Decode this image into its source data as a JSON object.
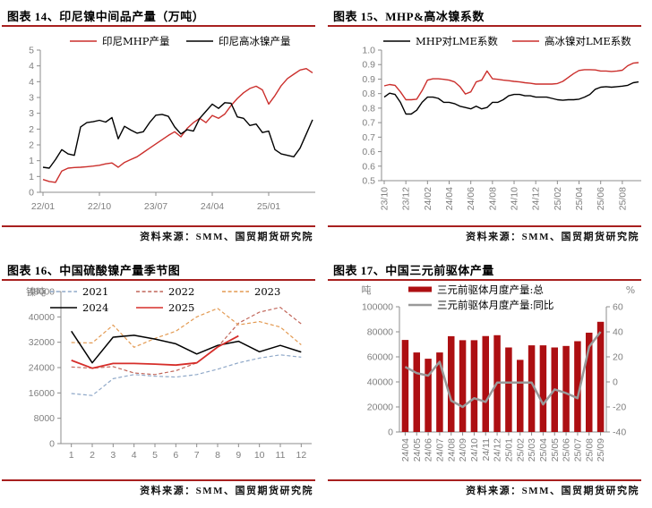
{
  "accent_red": "#A8201F",
  "panels": [
    {
      "title": "图表 14、印尼镍中间品产量（万吨）",
      "source": "资料来源：SMM、国贸期货研究院"
    },
    {
      "title": "图表 15、MHP&高冰镍系数",
      "source": "资料来源：SMM、国贸期货研究院"
    },
    {
      "title": "图表 16、中国硫酸镍产量季节图",
      "source": "资料来源：SMM、国贸期货研究院"
    },
    {
      "title": "图表 17、中国三元前驱体产量",
      "source": "资料来源：SMM、国贸期货研究院"
    }
  ],
  "chart_data": [
    {
      "type": "line",
      "title": "图表 14、印尼镍中间品产量（万吨）",
      "ylabel": "万吨",
      "x": {
        "n_points": 44,
        "labels": [
          "22/01",
          "22/10",
          "23/07",
          "24/04",
          "25/01"
        ],
        "label_indices": [
          0,
          9,
          18,
          27,
          36
        ]
      },
      "y": {
        "lim": [
          0,
          5
        ],
        "tick_labels": [
          "5",
          "4",
          "4",
          "3",
          "3",
          "2",
          "2",
          "1",
          "1",
          "0"
        ]
      },
      "legend_rows": [
        [
          {
            "label": "印尼MHP产量",
            "color": "#CB2F2C",
            "dash": false
          },
          {
            "label": "印尼高冰镍产量",
            "color": "#000000",
            "dash": false
          }
        ]
      ],
      "series": [
        {
          "name": "印尼MHP产量",
          "color": "#CB2F2C",
          "dash": false,
          "width": 1.4,
          "values": [
            0.45,
            0.38,
            0.35,
            0.75,
            0.85,
            0.87,
            0.88,
            0.9,
            0.92,
            0.95,
            1.0,
            1.03,
            0.88,
            1.05,
            1.15,
            1.25,
            1.4,
            1.55,
            1.7,
            1.85,
            2.0,
            2.13,
            1.95,
            2.25,
            2.45,
            2.6,
            2.45,
            2.7,
            2.6,
            2.75,
            3.05,
            3.3,
            3.5,
            3.65,
            3.73,
            3.6,
            3.1,
            3.4,
            3.75,
            4.0,
            4.15,
            4.3,
            4.35,
            4.2
          ]
        },
        {
          "name": "印尼高冰镍产量",
          "color": "#000000",
          "dash": false,
          "width": 1.4,
          "values": [
            0.88,
            0.85,
            1.15,
            1.5,
            1.35,
            1.3,
            2.3,
            2.45,
            2.48,
            2.53,
            2.47,
            2.63,
            1.88,
            2.32,
            2.19,
            2.08,
            2.13,
            2.45,
            2.71,
            2.74,
            2.67,
            2.3,
            2.05,
            2.2,
            2.15,
            2.6,
            2.85,
            3.1,
            2.95,
            3.15,
            3.13,
            2.65,
            2.6,
            2.35,
            2.4,
            2.1,
            2.15,
            1.5,
            1.35,
            1.3,
            1.25,
            1.55,
            2.05,
            2.55
          ]
        }
      ]
    },
    {
      "type": "line",
      "title": "图表 15、MHP&高冰镍系数",
      "x": {
        "n_points": 48,
        "labels": [
          "23/10",
          "23/12",
          "24/02",
          "24/04",
          "24/06",
          "24/08",
          "24/10",
          "24/12",
          "25/02",
          "25/04",
          "25/06",
          "25/08"
        ],
        "label_indices": [
          0,
          4,
          8,
          12,
          16,
          20,
          24,
          28,
          32,
          36,
          40,
          44
        ],
        "rotated": true
      },
      "y": {
        "lim": [
          0.5,
          1.0
        ],
        "tick_labels": [
          "1.0",
          "0.9",
          "0.9",
          "0.8",
          "0.8",
          "0.7",
          "0.7",
          "0.6",
          "0.6",
          "0.5"
        ]
      },
      "legend_rows": [
        [
          {
            "label": "MHP对LME系数",
            "color": "#000000",
            "dash": false
          },
          {
            "label": "高冰镍对LME系数",
            "color": "#CB2F2C",
            "dash": false
          }
        ]
      ],
      "series": [
        {
          "name": "MHP对LME系数",
          "color": "#000000",
          "dash": false,
          "width": 1.4,
          "values": [
            0.82,
            0.835,
            0.83,
            0.8,
            0.755,
            0.755,
            0.77,
            0.8,
            0.82,
            0.82,
            0.815,
            0.8,
            0.8,
            0.795,
            0.785,
            0.78,
            0.775,
            0.785,
            0.775,
            0.78,
            0.8,
            0.8,
            0.81,
            0.825,
            0.83,
            0.83,
            0.825,
            0.825,
            0.82,
            0.82,
            0.82,
            0.815,
            0.81,
            0.808,
            0.81,
            0.81,
            0.812,
            0.82,
            0.83,
            0.85,
            0.858,
            0.86,
            0.858,
            0.86,
            0.862,
            0.865,
            0.875,
            0.878
          ]
        },
        {
          "name": "高冰镍对LME系数",
          "color": "#CB2F2C",
          "dash": false,
          "width": 1.4,
          "values": [
            0.863,
            0.868,
            0.865,
            0.84,
            0.81,
            0.81,
            0.812,
            0.845,
            0.885,
            0.89,
            0.89,
            0.888,
            0.885,
            0.878,
            0.86,
            0.832,
            0.84,
            0.878,
            0.885,
            0.92,
            0.89,
            0.888,
            0.885,
            0.883,
            0.88,
            0.878,
            0.875,
            0.873,
            0.87,
            0.87,
            0.87,
            0.87,
            0.872,
            0.88,
            0.895,
            0.91,
            0.922,
            0.925,
            0.925,
            0.924,
            0.92,
            0.92,
            0.918,
            0.92,
            0.923,
            0.94,
            0.95,
            0.952
          ]
        }
      ]
    },
    {
      "type": "line",
      "title": "图表 16、中国硫酸镍产量季节图",
      "x": {
        "categories": [
          "1",
          "2",
          "3",
          "4",
          "5",
          "6",
          "7",
          "8",
          "9",
          "10",
          "11",
          "12"
        ]
      },
      "y": {
        "lim": [
          0,
          48000
        ],
        "unit": "镍吨",
        "tick_labels": [
          "48000",
          "40000",
          "32000",
          "24000",
          "16000",
          "8000",
          "0"
        ]
      },
      "legend_rows": [
        [
          {
            "label": "2021",
            "color": "#8FA8C8",
            "dash": true
          },
          {
            "label": "2022",
            "color": "#C1665A",
            "dash": true
          },
          {
            "label": "2023",
            "color": "#E39A52",
            "dash": true
          }
        ],
        [
          {
            "label": "2024",
            "color": "#000000",
            "dash": false
          },
          {
            "label": "2025",
            "color": "#D62E2A",
            "dash": false
          }
        ]
      ],
      "series": [
        {
          "name": "2021",
          "color": "#8FA8C8",
          "dash": true,
          "width": 1.2,
          "values": [
            15800,
            15200,
            20500,
            21800,
            21300,
            21000,
            21800,
            23500,
            25500,
            27000,
            28000,
            27300
          ]
        },
        {
          "name": "2022",
          "color": "#C1665A",
          "dash": true,
          "width": 1.2,
          "values": [
            24200,
            23800,
            24300,
            22300,
            21800,
            23000,
            25500,
            30500,
            38000,
            41500,
            43000,
            37800
          ]
        },
        {
          "name": "2023",
          "color": "#E39A52",
          "dash": true,
          "width": 1.2,
          "values": [
            31900,
            31800,
            37400,
            30400,
            33200,
            35500,
            40000,
            42700,
            37500,
            38500,
            36800,
            31200
          ]
        },
        {
          "name": "2024",
          "color": "#000000",
          "dash": false,
          "width": 1.5,
          "values": [
            35500,
            25500,
            33600,
            34200,
            33000,
            31500,
            28300,
            31000,
            32300,
            29000,
            31000,
            28900
          ]
        },
        {
          "name": "2025",
          "color": "#D62E2A",
          "dash": false,
          "width": 1.8,
          "values": [
            26300,
            23800,
            25300,
            25300,
            25100,
            24800,
            25500,
            30500,
            34000
          ]
        }
      ]
    },
    {
      "type": "bar-line",
      "title": "图表 17、中国三元前驱体产量",
      "x": {
        "categories": [
          "24/04",
          "24/05",
          "24/06",
          "24/07",
          "24/08",
          "24/09",
          "24/10",
          "24/11",
          "24/12",
          "25/01",
          "25/02",
          "25/03",
          "25/04",
          "25/05",
          "25/06",
          "25/07",
          "25/08",
          "25/09"
        ],
        "rotated": true
      },
      "y": {
        "lim": [
          0,
          100000
        ],
        "unit": "吨",
        "tick_labels": [
          "100000",
          "80000",
          "60000",
          "40000",
          "20000",
          "0"
        ]
      },
      "y2": {
        "lim": [
          -40,
          60
        ],
        "unit": "%",
        "tick_labels": [
          "60",
          "40",
          "20",
          "0",
          "-20",
          "-40"
        ]
      },
      "legend_rows": [
        [
          {
            "label": "三元前驱体月度产量:总",
            "color": "#AD0F12",
            "kind": "bar"
          }
        ],
        [
          {
            "label": "三元前驱体月度产量:同比",
            "color": "#999999",
            "kind": "thick"
          }
        ]
      ],
      "bars": {
        "name": "三元前驱体月度产量:总",
        "color": "#AD0F12",
        "values": [
          73500,
          63500,
          58500,
          63500,
          76500,
          73300,
          73300,
          76600,
          77300,
          67500,
          57600,
          69200,
          69200,
          67500,
          68700,
          72500,
          79300,
          88000
        ]
      },
      "series": [
        {
          "name": "三元前驱体月度产量:同比",
          "color": "#999999",
          "dash": false,
          "width": 2.5,
          "axis": "right",
          "values": [
            12,
            7,
            5,
            16,
            -15,
            -20,
            -13,
            -16,
            -0.5,
            -0.5,
            -0.5,
            -0.5,
            -18,
            -6,
            -9,
            -13,
            28,
            40
          ]
        }
      ]
    }
  ]
}
